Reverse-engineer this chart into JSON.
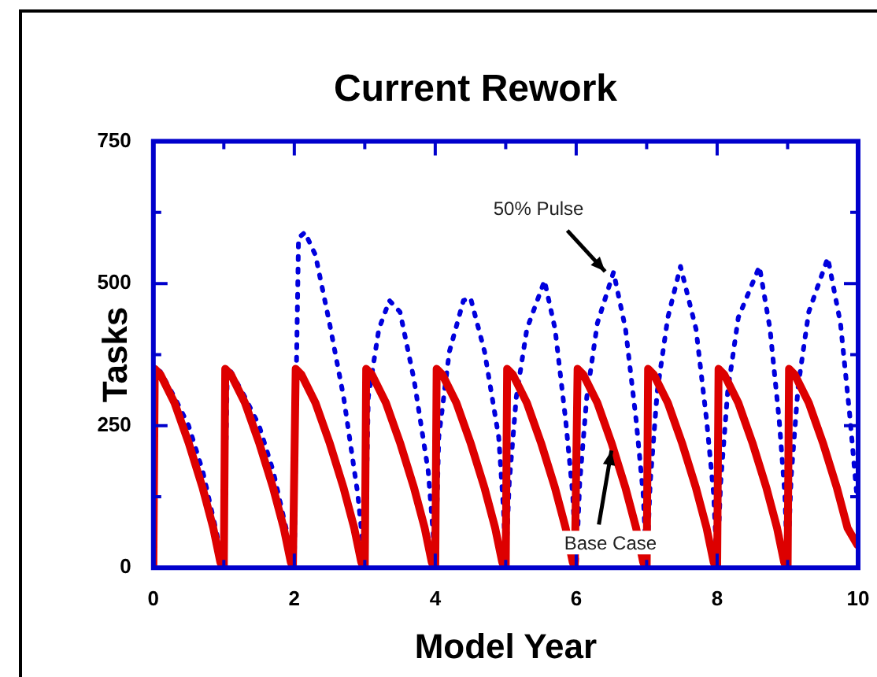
{
  "chart_data": {
    "type": "line",
    "title": "Current Rework",
    "xlabel": "Model Year",
    "ylabel": "Tasks",
    "xlim": [
      0,
      10
    ],
    "ylim": [
      0,
      750
    ],
    "xticks": [
      0,
      {
        "value": 1,
        "label": null
      },
      2,
      {
        "value": 3,
        "label": null
      },
      4,
      {
        "value": 5,
        "label": null
      },
      6,
      {
        "value": 7,
        "label": null
      },
      8,
      {
        "value": 9,
        "label": null
      },
      10
    ],
    "yticks": [
      0,
      {
        "value": 125,
        "label": null
      },
      250,
      {
        "value": 375,
        "label": null
      },
      500,
      {
        "value": 625,
        "label": null
      },
      750
    ],
    "grid": false,
    "legend": false,
    "marker": "none",
    "series": [
      {
        "color": "#dd0000",
        "line_style": "solid",
        "x": [
          0,
          0.02,
          0.1,
          0.3,
          0.5,
          0.7,
          0.85,
          0.95,
          0.98,
          1,
          1.02,
          1.1,
          1.3,
          1.5,
          1.7,
          1.85,
          1.95,
          1.98,
          2,
          2.02,
          2.1,
          2.3,
          2.5,
          2.7,
          2.85,
          2.95,
          2.98,
          3,
          3.02,
          3.1,
          3.3,
          3.5,
          3.7,
          3.85,
          3.95,
          3.98,
          4,
          4.02,
          4.1,
          4.3,
          4.5,
          4.7,
          4.85,
          4.95,
          4.98,
          5,
          5.02,
          5.1,
          5.3,
          5.5,
          5.7,
          5.85,
          5.95,
          5.98,
          6,
          6.02,
          6.1,
          6.3,
          6.5,
          6.7,
          6.85,
          6.95,
          6.98,
          7,
          7.02,
          7.1,
          7.3,
          7.5,
          7.7,
          7.85,
          7.95,
          7.98,
          8,
          8.02,
          8.1,
          8.3,
          8.5,
          8.7,
          8.85,
          8.95,
          8.98,
          9,
          9.02,
          9.1,
          9.3,
          9.5,
          9.7,
          9.85,
          9.99
        ],
        "values": [
          0,
          350,
          340,
          290,
          220,
          140,
          70,
          10,
          0,
          0,
          350,
          340,
          290,
          220,
          140,
          70,
          10,
          0,
          0,
          350,
          340,
          290,
          220,
          140,
          70,
          10,
          0,
          0,
          350,
          340,
          290,
          220,
          140,
          70,
          10,
          0,
          0,
          350,
          340,
          290,
          220,
          140,
          70,
          10,
          0,
          0,
          350,
          340,
          290,
          220,
          140,
          70,
          10,
          0,
          0,
          350,
          340,
          290,
          220,
          140,
          70,
          10,
          0,
          0,
          350,
          340,
          290,
          220,
          140,
          70,
          10,
          0,
          0,
          350,
          340,
          290,
          220,
          140,
          70,
          10,
          0,
          0,
          350,
          340,
          290,
          220,
          140,
          70,
          40
        ]
      },
      {
        "color": "#0000dd",
        "line_style": "dotted",
        "x": [
          0,
          0.03,
          0.1,
          0.3,
          0.5,
          0.7,
          0.9,
          0.98,
          1,
          1.05,
          1.1,
          1.3,
          1.5,
          1.7,
          1.9,
          1.98,
          2,
          2.03,
          2.06,
          2.15,
          2.3,
          2.5,
          2.7,
          2.9,
          2.99,
          3,
          3.05,
          3.2,
          3.35,
          3.5,
          3.7,
          3.9,
          3.97,
          4,
          4.05,
          4.2,
          4.4,
          4.5,
          4.7,
          4.9,
          4.97,
          5,
          5.05,
          5.15,
          5.3,
          5.55,
          5.7,
          5.85,
          5.95,
          6,
          6.05,
          6.15,
          6.3,
          6.53,
          6.7,
          6.85,
          6.95,
          7,
          7.05,
          7.15,
          7.3,
          7.48,
          7.7,
          7.85,
          7.95,
          8,
          8.05,
          8.15,
          8.3,
          8.6,
          8.75,
          8.88,
          8.96,
          9,
          9.05,
          9.15,
          9.3,
          9.57,
          9.75,
          9.88,
          9.98
        ],
        "values": [
          0,
          350,
          345,
          300,
          250,
          170,
          60,
          0,
          0,
          350,
          345,
          300,
          250,
          170,
          60,
          0,
          0,
          350,
          580,
          590,
          550,
          430,
          300,
          130,
          20,
          0,
          300,
          420,
          470,
          450,
          330,
          170,
          60,
          0,
          230,
          380,
          470,
          475,
          380,
          230,
          100,
          0,
          150,
          300,
          420,
          505,
          420,
          260,
          130,
          0,
          150,
          300,
          430,
          520,
          420,
          260,
          130,
          0,
          150,
          310,
          440,
          530,
          420,
          260,
          130,
          0,
          150,
          310,
          440,
          530,
          420,
          260,
          130,
          0,
          160,
          320,
          450,
          545,
          430,
          270,
          130
        ]
      }
    ],
    "annotations": [
      {
        "text": "50% Pulse",
        "x": 6.5,
        "y": 510
      },
      {
        "text": "Base Case",
        "x": 6.5,
        "y": 220
      }
    ]
  }
}
